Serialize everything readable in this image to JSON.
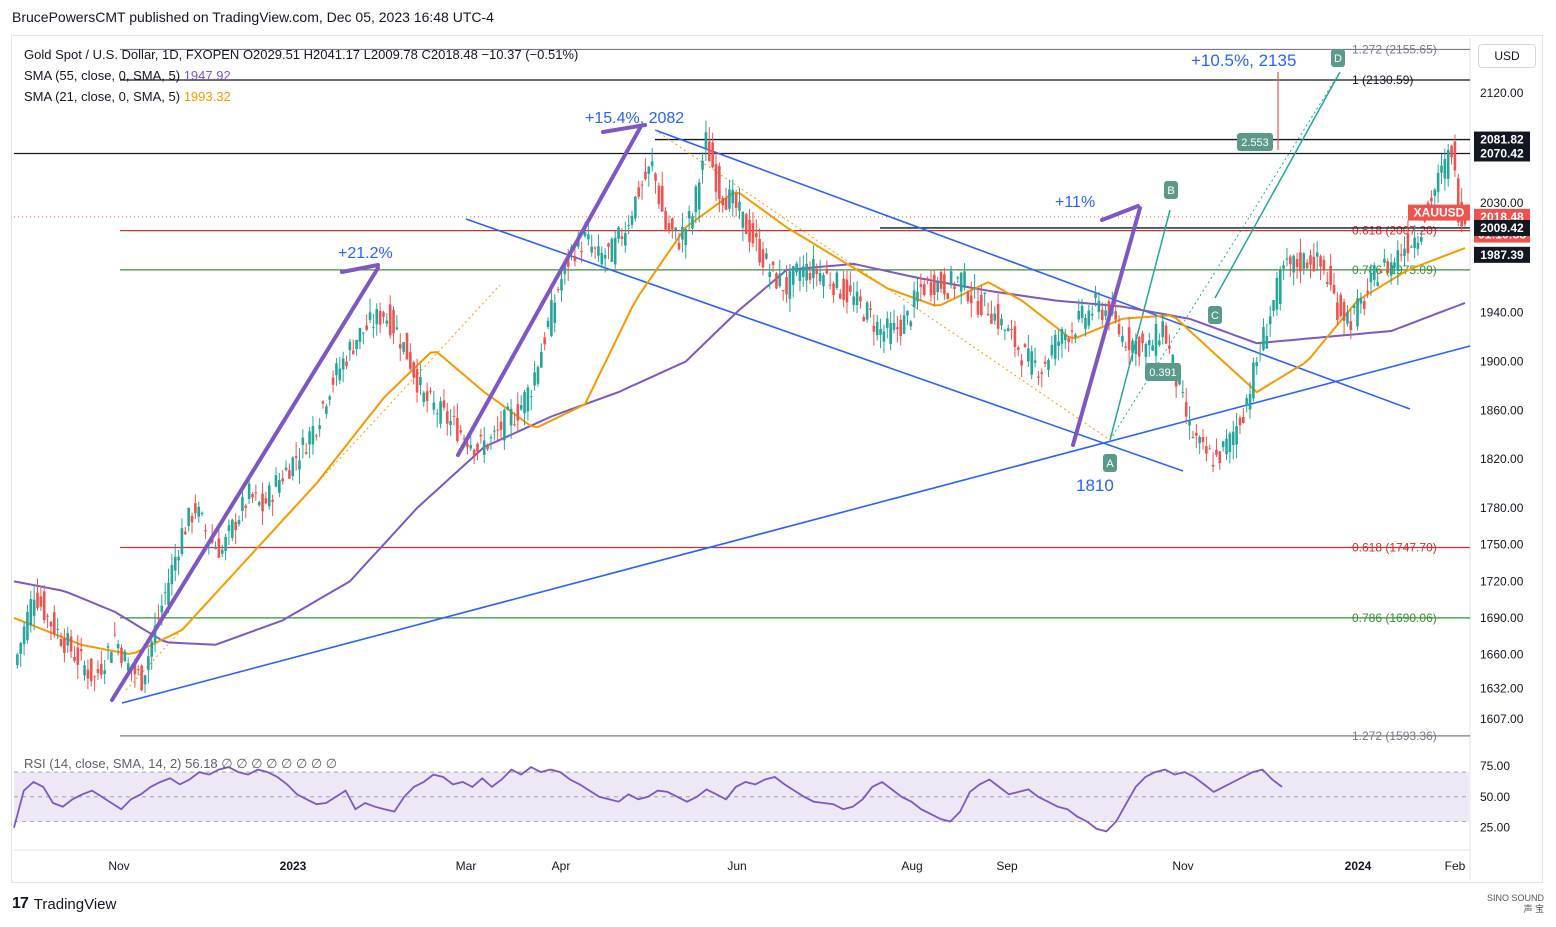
{
  "header": {
    "caption": "BrucePowersCMT published on TradingView.com, Dec 05, 2023 16:48 UTC-4"
  },
  "legend": {
    "symbol": "Gold Spot / U.S. Dollar, 1D, FXOPEN",
    "ohlc": "O2029.51  H2041.17  L2009.78  C2018.48  −10.37 (−0.51%)",
    "sma55_label": "SMA (55, close, 0, SMA, 5)",
    "sma55_value": "1947.92",
    "sma21_label": "SMA (21, close, 0, SMA, 5)",
    "sma21_value": "1993.32",
    "rsi_label": "RSI (14, close, SMA, 14, 2)  56.18  ∅  ∅  ∅  ∅  ∅  ∅  ∅  ∅"
  },
  "currency": "USD",
  "footer": {
    "brand": "TradingView",
    "watermark_line1": "SINO SOUND",
    "watermark_line2": "声 宝"
  },
  "colors": {
    "up": "#26a69a",
    "down": "#ef5350",
    "sma55": "#7e57c2",
    "sma21": "#f59b00",
    "trendline": "#2962ff",
    "arrow": "#7e57c2",
    "fib_red": "#d32f2f",
    "fib_green": "#388e3c",
    "rsi_line": "#7e57c2",
    "rsi_band": "#ede7f6"
  },
  "chart_data": {
    "type": "candlestick",
    "title": "Gold Spot / U.S. Dollar, 1D, FXOPEN",
    "x_ticks": [
      "Nov",
      "2023",
      "Mar",
      "Apr",
      "Jun",
      "Aug",
      "Sep",
      "Nov",
      "2024",
      "Feb"
    ],
    "y_ticks": [
      "2120.00",
      "2030.00",
      "1940.00",
      "1900.00",
      "1860.00",
      "1820.00",
      "1780.00",
      "1750.00",
      "1720.00",
      "1690.00",
      "1660.00",
      "1632.00",
      "1607.00"
    ],
    "ylim": [
      1590,
      2165
    ],
    "price_path": [
      [
        0,
        1650
      ],
      [
        6,
        1712
      ],
      [
        10,
        1690
      ],
      [
        18,
        1660
      ],
      [
        24,
        1640
      ],
      [
        30,
        1675
      ],
      [
        34,
        1650
      ],
      [
        38,
        1640
      ],
      [
        42,
        1680
      ],
      [
        46,
        1720
      ],
      [
        50,
        1760
      ],
      [
        54,
        1780
      ],
      [
        58,
        1755
      ],
      [
        62,
        1745
      ],
      [
        66,
        1770
      ],
      [
        70,
        1790
      ],
      [
        74,
        1780
      ],
      [
        78,
        1800
      ],
      [
        82,
        1815
      ],
      [
        86,
        1830
      ],
      [
        90,
        1850
      ],
      [
        94,
        1880
      ],
      [
        98,
        1900
      ],
      [
        102,
        1920
      ],
      [
        106,
        1930
      ],
      [
        110,
        1940
      ],
      [
        114,
        1925
      ],
      [
        118,
        1900
      ],
      [
        122,
        1870
      ],
      [
        126,
        1860
      ],
      [
        130,
        1850
      ],
      [
        134,
        1840
      ],
      [
        138,
        1830
      ],
      [
        142,
        1835
      ],
      [
        146,
        1850
      ],
      [
        150,
        1860
      ],
      [
        154,
        1880
      ],
      [
        158,
        1920
      ],
      [
        162,
        1960
      ],
      [
        166,
        1990
      ],
      [
        170,
        2000
      ],
      [
        174,
        1985
      ],
      [
        178,
        1990
      ],
      [
        182,
        2010
      ],
      [
        186,
        2040
      ],
      [
        190,
        2060
      ],
      [
        194,
        2010
      ],
      [
        198,
        2000
      ],
      [
        202,
        2020
      ],
      [
        206,
        2080
      ],
      [
        210,
        2040
      ],
      [
        214,
        2030
      ],
      [
        218,
        2010
      ],
      [
        222,
        1990
      ],
      [
        226,
        1970
      ],
      [
        230,
        1960
      ],
      [
        234,
        1975
      ],
      [
        238,
        1975
      ],
      [
        242,
        1970
      ],
      [
        246,
        1960
      ],
      [
        250,
        1950
      ],
      [
        254,
        1940
      ],
      [
        258,
        1925
      ],
      [
        262,
        1925
      ],
      [
        266,
        1935
      ],
      [
        270,
        1960
      ],
      [
        274,
        1965
      ],
      [
        278,
        1962
      ],
      [
        282,
        1968
      ],
      [
        286,
        1950
      ],
      [
        290,
        1945
      ],
      [
        294,
        1930
      ],
      [
        298,
        1915
      ],
      [
        302,
        1900
      ],
      [
        306,
        1895
      ],
      [
        310,
        1915
      ],
      [
        314,
        1925
      ],
      [
        318,
        1935
      ],
      [
        322,
        1945
      ],
      [
        326,
        1940
      ],
      [
        330,
        1920
      ],
      [
        334,
        1915
      ],
      [
        338,
        1910
      ],
      [
        342,
        1930
      ],
      [
        346,
        1885
      ],
      [
        350,
        1845
      ],
      [
        354,
        1825
      ],
      [
        358,
        1820
      ],
      [
        362,
        1835
      ],
      [
        366,
        1860
      ],
      [
        370,
        1900
      ],
      [
        374,
        1940
      ],
      [
        378,
        1975
      ],
      [
        382,
        1980
      ],
      [
        386,
        1985
      ],
      [
        390,
        1975
      ],
      [
        394,
        1945
      ],
      [
        398,
        1935
      ],
      [
        402,
        1950
      ],
      [
        406,
        1975
      ],
      [
        410,
        1980
      ],
      [
        414,
        1995
      ],
      [
        418,
        2005
      ],
      [
        422,
        2035
      ],
      [
        426,
        2060
      ],
      [
        428,
        2075
      ],
      [
        430,
        2025
      ],
      [
        432,
        2018
      ]
    ],
    "sma21_path": [
      [
        0,
        1690
      ],
      [
        20,
        1668
      ],
      [
        35,
        1660
      ],
      [
        50,
        1680
      ],
      [
        70,
        1740
      ],
      [
        90,
        1800
      ],
      [
        110,
        1870
      ],
      [
        125,
        1910
      ],
      [
        140,
        1875
      ],
      [
        155,
        1845
      ],
      [
        170,
        1865
      ],
      [
        185,
        1950
      ],
      [
        200,
        2010
      ],
      [
        215,
        2040
      ],
      [
        230,
        2010
      ],
      [
        245,
        1985
      ],
      [
        260,
        1960
      ],
      [
        275,
        1945
      ],
      [
        290,
        1965
      ],
      [
        300,
        1950
      ],
      [
        315,
        1918
      ],
      [
        330,
        1935
      ],
      [
        345,
        1938
      ],
      [
        360,
        1900
      ],
      [
        370,
        1875
      ],
      [
        385,
        1900
      ],
      [
        400,
        1950
      ],
      [
        415,
        1975
      ],
      [
        432,
        1993
      ]
    ],
    "sma55_path": [
      [
        0,
        1720
      ],
      [
        15,
        1712
      ],
      [
        30,
        1695
      ],
      [
        45,
        1670
      ],
      [
        60,
        1668
      ],
      [
        80,
        1688
      ],
      [
        100,
        1720
      ],
      [
        120,
        1780
      ],
      [
        140,
        1830
      ],
      [
        160,
        1855
      ],
      [
        180,
        1875
      ],
      [
        200,
        1900
      ],
      [
        215,
        1940
      ],
      [
        230,
        1975
      ],
      [
        250,
        1980
      ],
      [
        270,
        1968
      ],
      [
        290,
        1958
      ],
      [
        310,
        1950
      ],
      [
        330,
        1945
      ],
      [
        350,
        1935
      ],
      [
        370,
        1915
      ],
      [
        390,
        1920
      ],
      [
        410,
        1925
      ],
      [
        432,
        1948
      ]
    ],
    "annotations": {
      "arrows": [
        {
          "label": "+21.2%",
          "from": [
            110,
            1620
          ],
          "to": [
            126,
            1947
          ]
        },
        {
          "label": "+15.4%, 2082",
          "from": [
            160,
            1818
          ],
          "to": [
            215,
            2082
          ]
        },
        {
          "label": "+11%",
          "from": [
            353,
            1818
          ],
          "to": [
            380,
            1990
          ]
        },
        {
          "label": "+10.5%, 2135",
          "from": null,
          "to": null
        }
      ],
      "low_label": "1810",
      "abcd": [
        "A",
        "B",
        "C",
        "D"
      ],
      "ratio_labels": [
        "0.391",
        "2.553"
      ]
    },
    "horizontal_levels": [
      {
        "label": "1.272 (2155.65)",
        "value": 2155.65,
        "color": "#787b86"
      },
      {
        "label": "1 (2130.59)",
        "value": 2130.59,
        "color": "#131722"
      },
      {
        "label": "0.618 (2007.20)",
        "value": 2007.2,
        "color": "#d32f2f"
      },
      {
        "label": "0.786 (1975.09)",
        "value": 1975.09,
        "color": "#388e3c"
      },
      {
        "label": "0.618 (1747.70)",
        "value": 1747.7,
        "color": "#d32f2f"
      },
      {
        "label": "0.786 (1690.06)",
        "value": 1690.06,
        "color": "#388e3c"
      },
      {
        "label": "1.272 (1593.36)",
        "value": 1593.36,
        "color": "#787b86"
      }
    ],
    "price_tags": [
      {
        "text": "2081.82",
        "value": 2081.82,
        "bg": "#131722",
        "fg": "#ffffff"
      },
      {
        "text": "2070.42",
        "value": 2070.42,
        "bg": "#131722",
        "fg": "#ffffff"
      },
      {
        "text": "XAUUSD",
        "value": 2022,
        "bg": "#ef5350",
        "fg": "#ffffff"
      },
      {
        "text": "2018.48",
        "value": 2018.48,
        "bg": "#ef5350",
        "fg": "#ffffff"
      },
      {
        "text": "01:10:58",
        "value": 2004,
        "bg": "#ef5350",
        "fg": "#ffffff"
      },
      {
        "text": "2009.42",
        "value": 2009.42,
        "bg": "#131722",
        "fg": "#ffffff"
      },
      {
        "text": "1987.39",
        "value": 1987.39,
        "bg": "#131722",
        "fg": "#ffffff"
      }
    ],
    "rsi": {
      "ticks": [
        "75.00",
        "50.00",
        "25.00"
      ],
      "values": [
        25,
        55,
        62,
        58,
        45,
        42,
        48,
        52,
        55,
        50,
        45,
        40,
        48,
        52,
        58,
        62,
        65,
        60,
        64,
        70,
        68,
        72,
        74,
        70,
        68,
        72,
        70,
        66,
        60,
        52,
        48,
        44,
        45,
        50,
        55,
        40,
        45,
        42,
        40,
        38,
        50,
        58,
        62,
        68,
        66,
        60,
        62,
        58,
        65,
        58,
        64,
        72,
        68,
        74,
        70,
        72,
        70,
        64,
        60,
        55,
        50,
        48,
        46,
        52,
        48,
        50,
        55,
        54,
        50,
        46,
        50,
        56,
        52,
        48,
        58,
        62,
        60,
        64,
        66,
        60,
        55,
        50,
        46,
        45,
        44,
        40,
        42,
        48,
        58,
        62,
        56,
        50,
        46,
        40,
        36,
        32,
        30,
        38,
        54,
        60,
        64,
        58,
        52,
        54,
        56,
        50,
        46,
        42,
        40,
        34,
        30,
        24,
        22,
        30,
        44,
        58,
        66,
        70,
        72,
        68,
        70,
        66,
        60,
        54,
        58,
        62,
        66,
        70,
        72,
        64,
        58
      ]
    }
  }
}
